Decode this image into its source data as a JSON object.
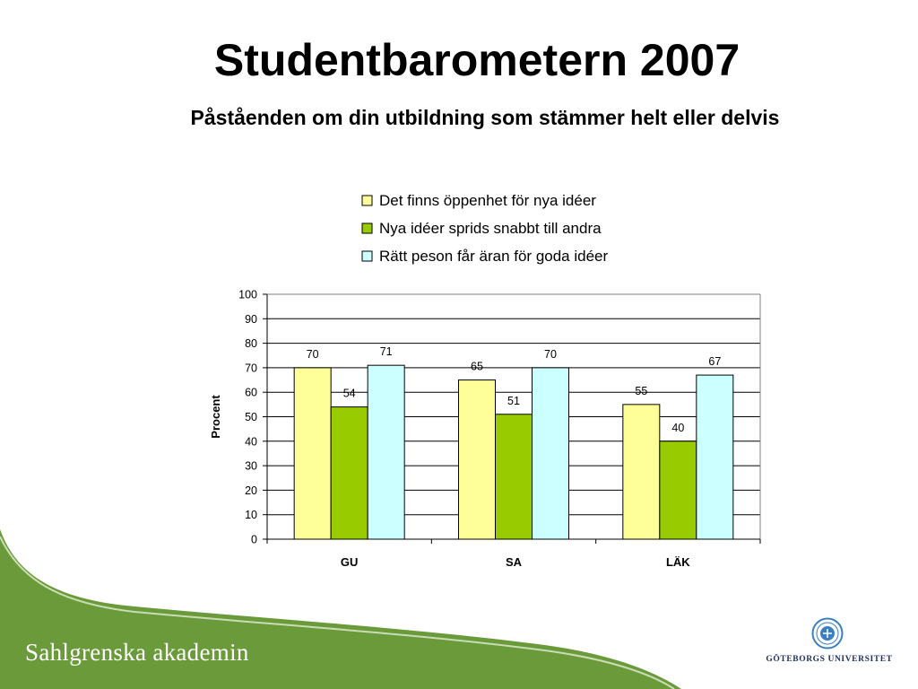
{
  "page": {
    "title": "Studentbarometern 2007",
    "subtitle": "Påståenden om din utbildning som stämmer helt eller delvis"
  },
  "footer": {
    "brand": "Sahlgrenska akademin",
    "university": "GÖTEBORGS UNIVERSITET",
    "logo_icon": "university-seal-icon",
    "green": "#6a9a3a"
  },
  "chart_data": {
    "type": "bar",
    "title": "",
    "xlabel": "",
    "ylabel": "Procent",
    "ylim": [
      0,
      100
    ],
    "yticks": [
      0,
      10,
      20,
      30,
      40,
      50,
      60,
      70,
      80,
      90,
      100
    ],
    "grid": true,
    "legend_position": "top",
    "categories": [
      "GU",
      "SA",
      "LÄK"
    ],
    "series": [
      {
        "name": "Det finns öppenhet för nya idéer",
        "color": "#ffff99",
        "values": [
          70,
          65,
          55
        ]
      },
      {
        "name": "Nya idéer sprids snabbt till andra",
        "color": "#99cc00",
        "values": [
          54,
          51,
          40
        ]
      },
      {
        "name": "Rätt peson får äran för goda idéer",
        "color": "#ccffff",
        "values": [
          71,
          70,
          67
        ]
      }
    ]
  }
}
